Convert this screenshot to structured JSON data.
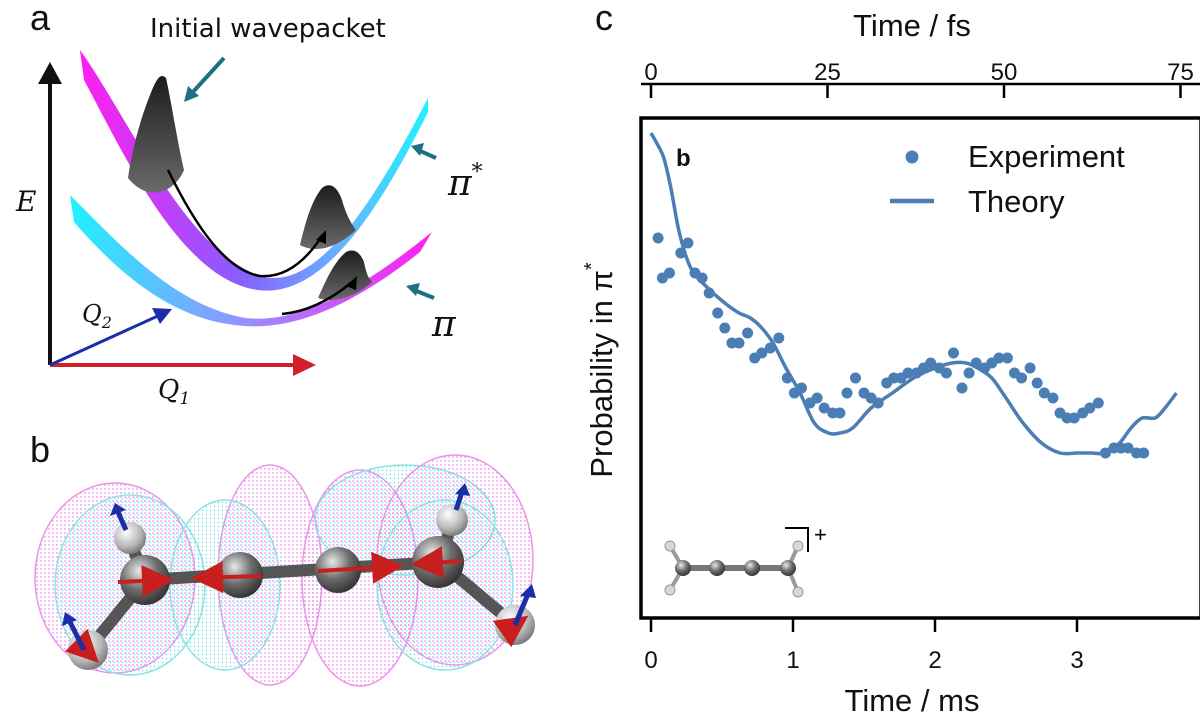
{
  "panel_a": {
    "label": "a",
    "annotation": "Initial wavepacket",
    "energy_axis": "E",
    "q2_axis": {
      "base": "Q",
      "sub": "2"
    },
    "q1_axis": {
      "base": "Q",
      "sub": "1"
    },
    "upper_state": {
      "base": "π",
      "sup": "*"
    },
    "lower_state": "π"
  },
  "panel_b": {
    "label": "b"
  },
  "panel_c": {
    "label": "c",
    "inset_label": "b",
    "charge": "+",
    "colors": {
      "series": "#4a7eb5",
      "frame": "#000000"
    }
  },
  "chart_data": {
    "type": "scatter",
    "top_axis": {
      "label": "Time / fs",
      "range": [
        0,
        75
      ],
      "ticks": [
        "0",
        "25",
        "50",
        "75"
      ]
    },
    "bottom_axis": {
      "label": "Time / ms",
      "range": [
        0,
        3.7
      ],
      "ticks": [
        "0",
        "1",
        "2",
        "3"
      ]
    },
    "ylabel": {
      "base": "Probability in π",
      "sup": "*"
    },
    "ylim": [
      0,
      1
    ],
    "legend": {
      "position": "top-right",
      "entries": [
        "Experiment",
        "Theory"
      ]
    },
    "series": [
      {
        "name": "Experiment",
        "kind": "markers",
        "x": [
          0.05,
          0.08,
          0.13,
          0.21,
          0.26,
          0.31,
          0.36,
          0.41,
          0.47,
          0.52,
          0.57,
          0.62,
          0.68,
          0.73,
          0.78,
          0.84,
          0.9,
          0.96,
          1.01,
          1.06,
          1.12,
          1.17,
          1.22,
          1.28,
          1.33,
          1.38,
          1.44,
          1.5,
          1.55,
          1.6,
          1.66,
          1.71,
          1.76,
          1.81,
          1.87,
          1.92,
          1.97,
          2.03,
          2.08,
          2.13,
          2.19,
          2.24,
          2.29,
          2.35,
          2.4,
          2.45,
          2.51,
          2.56,
          2.61,
          2.67,
          2.72,
          2.77,
          2.83,
          2.88,
          2.93,
          2.98,
          3.04,
          3.09,
          3.15,
          3.2,
          3.26,
          3.31,
          3.36,
          3.42,
          3.47
        ],
        "y": [
          0.76,
          0.68,
          0.69,
          0.73,
          0.75,
          0.69,
          0.68,
          0.65,
          0.61,
          0.58,
          0.55,
          0.55,
          0.57,
          0.52,
          0.53,
          0.54,
          0.56,
          0.48,
          0.45,
          0.46,
          0.43,
          0.44,
          0.42,
          0.41,
          0.41,
          0.45,
          0.48,
          0.45,
          0.44,
          0.43,
          0.47,
          0.48,
          0.48,
          0.49,
          0.49,
          0.5,
          0.51,
          0.5,
          0.49,
          0.53,
          0.46,
          0.49,
          0.51,
          0.5,
          0.51,
          0.52,
          0.52,
          0.49,
          0.48,
          0.5,
          0.47,
          0.45,
          0.44,
          0.41,
          0.4,
          0.4,
          0.41,
          0.42,
          0.43,
          0.33,
          0.34,
          0.34,
          0.34,
          0.33,
          0.33
        ]
      },
      {
        "name": "Theory",
        "kind": "line",
        "x": [
          0,
          0.04,
          0.09,
          0.14,
          0.2,
          0.28,
          0.4,
          0.52,
          0.62,
          0.7,
          0.78,
          0.86,
          0.95,
          1.05,
          1.15,
          1.25,
          1.33,
          1.42,
          1.55,
          1.7,
          1.85,
          2.0,
          2.12,
          2.22,
          2.3,
          2.4,
          2.5,
          2.62,
          2.75,
          2.88,
          3.0,
          3.1,
          3.2,
          3.3,
          3.38,
          3.46,
          3.55,
          3.62,
          3.7
        ],
        "y": [
          0.97,
          0.95,
          0.92,
          0.86,
          0.77,
          0.7,
          0.66,
          0.63,
          0.61,
          0.6,
          0.58,
          0.55,
          0.5,
          0.45,
          0.39,
          0.37,
          0.37,
          0.38,
          0.42,
          0.45,
          0.48,
          0.5,
          0.51,
          0.51,
          0.5,
          0.48,
          0.44,
          0.39,
          0.35,
          0.33,
          0.33,
          0.33,
          0.33,
          0.35,
          0.38,
          0.4,
          0.4,
          0.42,
          0.45
        ]
      }
    ]
  }
}
